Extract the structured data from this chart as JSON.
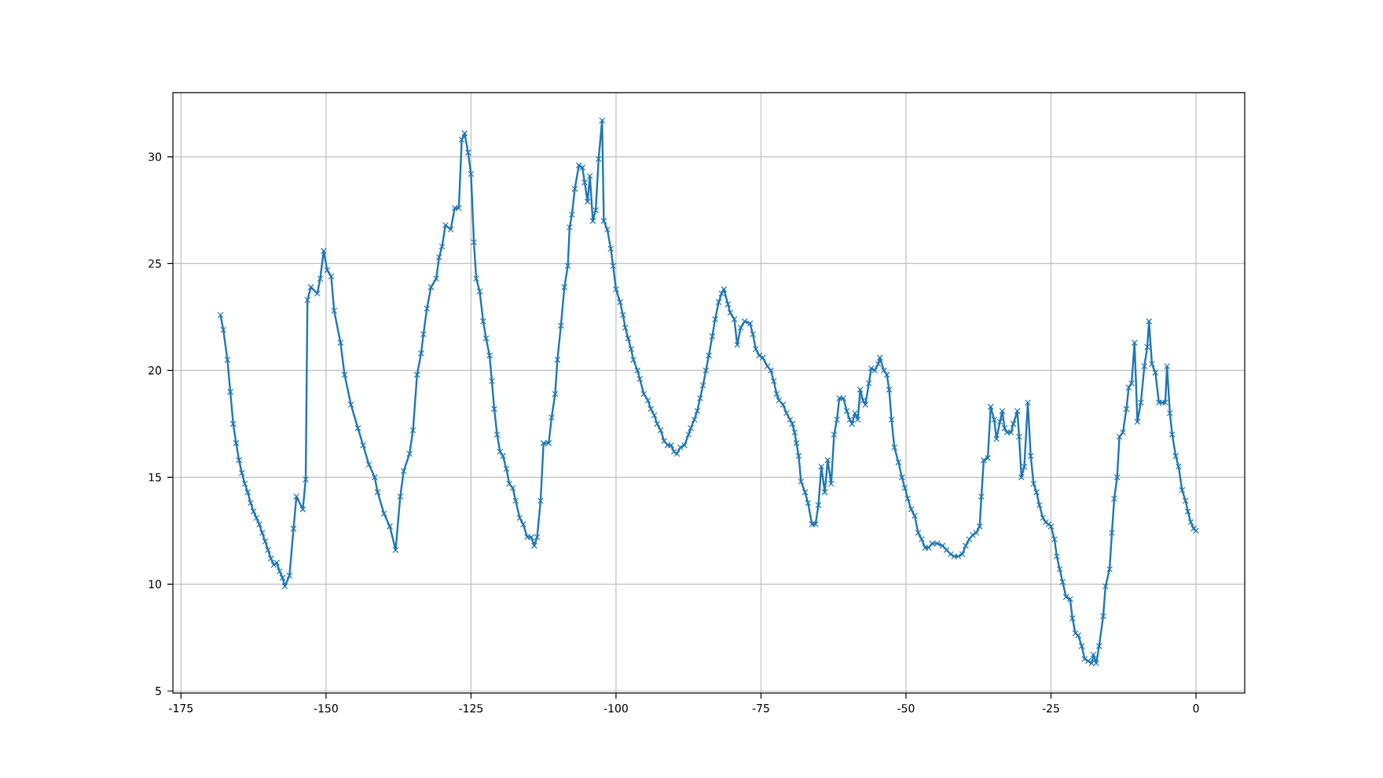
{
  "chart_data": {
    "type": "line",
    "color": "#1f77b4",
    "marker": "cross",
    "line_style": "solid",
    "grid": true,
    "xlim": [
      -176.4,
      8.4
    ],
    "ylim": [
      4.9,
      33.0
    ],
    "xticks": [
      -175,
      -150,
      -125,
      -100,
      -75,
      -50,
      -25,
      0
    ],
    "yticks": [
      5,
      10,
      15,
      20,
      25,
      30
    ],
    "x": [
      -168.2,
      -167.7,
      -167,
      -166.5,
      -166,
      -165.5,
      -165,
      -164.5,
      -164,
      -163.5,
      -163,
      -162.5,
      -162,
      -161.5,
      -161,
      -160.5,
      -160,
      -159.5,
      -159,
      -158.5,
      -158,
      -157.5,
      -157.1,
      -156.3,
      -155.6,
      -155.1,
      -154,
      -153.5,
      -153.2,
      -152.6,
      -151.5,
      -151,
      -150.4,
      -149.8,
      -149.1,
      -148.6,
      -147.5,
      -146.8,
      -145.7,
      -144.5,
      -143.6,
      -142.6,
      -141.6,
      -141.1,
      -140,
      -139,
      -138,
      -137.2,
      -136.6,
      -135.6,
      -135,
      -134.3,
      -133.6,
      -133.2,
      -132.6,
      -131.9,
      -131,
      -130.5,
      -130,
      -129.4,
      -128.5,
      -127.8,
      -127.1,
      -126.6,
      -126.1,
      -125.5,
      -125,
      -124.5,
      -124.1,
      -123.5,
      -122.9,
      -122.4,
      -121.8,
      -121.4,
      -121,
      -120.5,
      -120,
      -119.5,
      -118.9,
      -118.4,
      -117.8,
      -117.3,
      -116.6,
      -116,
      -115.3,
      -114.6,
      -114.1,
      -113.6,
      -113,
      -112.5,
      -111.6,
      -111.1,
      -110.5,
      -110.1,
      -109.5,
      -108.9,
      -108.3,
      -108,
      -107.6,
      -107.1,
      -106.4,
      -105.8,
      -105.4,
      -104.9,
      -104.5,
      -104,
      -103.5,
      -103,
      -102.4,
      -102.1,
      -101.5,
      -100.9,
      -100.5,
      -100,
      -99.3,
      -98.8,
      -98.4,
      -97.9,
      -97.4,
      -97,
      -96.3,
      -95.9,
      -95.2,
      -94.5,
      -94,
      -93.4,
      -92.9,
      -92.3,
      -91.7,
      -91.1,
      -90.5,
      -90,
      -89.5,
      -88.9,
      -88.2,
      -87.5,
      -87.1,
      -86.5,
      -86,
      -85.5,
      -85,
      -84.5,
      -84,
      -83.4,
      -82.9,
      -82.3,
      -81.8,
      -81.4,
      -80.7,
      -80.3,
      -79.6,
      -79.1,
      -78.5,
      -77.8,
      -76.9,
      -76.4,
      -75.9,
      -75.3,
      -74.7,
      -73.9,
      -73.3,
      -72.8,
      -72.3,
      -71.9,
      -71.2,
      -70.6,
      -70,
      -69.6,
      -69.2,
      -68.9,
      -68.5,
      -68.1,
      -67.4,
      -66.9,
      -66.2,
      -65.6,
      -65.1,
      -64.6,
      -64,
      -63.5,
      -62.9,
      -62.4,
      -61.9,
      -61.5,
      -60.8,
      -60.2,
      -59.7,
      -59.3,
      -58.8,
      -58.3,
      -57.9,
      -57.4,
      -57,
      -56.4,
      -56,
      -55.4,
      -54.8,
      -54.5,
      -53.8,
      -53.3,
      -52.9,
      -52.5,
      -52,
      -51.3,
      -50.7,
      -50.2,
      -49.7,
      -49.1,
      -48.5,
      -47.9,
      -47.3,
      -46.7,
      -46.1,
      -45.5,
      -44.6,
      -43.7,
      -43,
      -42.3,
      -41.7,
      -41,
      -40.3,
      -39.7,
      -39.1,
      -38.5,
      -37.9,
      -37.3,
      -37,
      -36.6,
      -35.9,
      -35.4,
      -34.8,
      -34.4,
      -33.8,
      -33.4,
      -33,
      -32.6,
      -31.9,
      -31.5,
      -30.8,
      -30.5,
      -30.1,
      -29.6,
      -29,
      -28.5,
      -28,
      -27.5,
      -27,
      -26.4,
      -25.9,
      -25.4,
      -25,
      -24.4,
      -24,
      -23.5,
      -23,
      -22.4,
      -21.7,
      -21.3,
      -20.8,
      -20.3,
      -19.7,
      -19.2,
      -18.6,
      -18,
      -17.7,
      -17.2,
      -16.7,
      -16,
      -15.6,
      -14.9,
      -14.5,
      -14.1,
      -13.6,
      -13.2,
      -12.6,
      -12,
      -11.6,
      -11.1,
      -10.6,
      -10.1,
      -9.5,
      -8.9,
      -8.4,
      -8.1,
      -7.6,
      -7,
      -6.4,
      -5.8,
      -5.3,
      -5,
      -4.5,
      -4.1,
      -3.5,
      -3,
      -2.4,
      -1.8,
      -1.4,
      -0.9,
      -0.4,
      0
    ],
    "values": [
      22.6,
      21.9,
      20.5,
      19,
      17.5,
      16.6,
      15.8,
      15.2,
      14.7,
      14.3,
      13.8,
      13.4,
      13.1,
      12.8,
      12.4,
      12,
      11.6,
      11.2,
      10.9,
      11,
      10.6,
      10.3,
      9.9,
      10.4,
      12.6,
      14.1,
      13.5,
      14.9,
      23.3,
      23.9,
      23.6,
      24.3,
      25.6,
      24.7,
      24.4,
      22.8,
      21.3,
      19.8,
      18.4,
      17.3,
      16.5,
      15.6,
      15,
      14.3,
      13.3,
      12.7,
      11.6,
      14.1,
      15.3,
      16.1,
      17.2,
      19.8,
      20.8,
      21.7,
      22.9,
      23.9,
      24.3,
      25.3,
      25.8,
      26.8,
      26.6,
      27.6,
      27.6,
      30.8,
      31.1,
      30.2,
      29.2,
      26,
      24.3,
      23.7,
      22.3,
      21.5,
      20.7,
      19.5,
      18.2,
      17,
      16.2,
      16,
      15.4,
      14.7,
      14.5,
      13.9,
      13.1,
      12.8,
      12.2,
      12.2,
      11.8,
      12.2,
      13.9,
      16.6,
      16.6,
      17.8,
      18.9,
      20.5,
      22.1,
      23.9,
      24.9,
      26.7,
      27.3,
      28.5,
      29.6,
      29.5,
      28.8,
      27.9,
      29.1,
      27,
      27.5,
      29.9,
      31.7,
      27,
      26.6,
      25.7,
      24.9,
      23.8,
      23.2,
      22.6,
      22,
      21.5,
      21,
      20.5,
      20,
      19.6,
      18.9,
      18.6,
      18.2,
      17.9,
      17.5,
      17.2,
      16.7,
      16.5,
      16.5,
      16.2,
      16.1,
      16.4,
      16.5,
      17,
      17.3,
      17.7,
      18.1,
      18.7,
      19.3,
      20,
      20.7,
      21.6,
      22.4,
      23.2,
      23.6,
      23.8,
      23.1,
      22.7,
      22.4,
      21.2,
      22,
      22.3,
      22.2,
      21.7,
      21,
      20.7,
      20.6,
      20.2,
      20,
      19.5,
      18.9,
      18.6,
      18.4,
      18,
      17.7,
      17.5,
      17.1,
      16.6,
      16,
      14.8,
      14.3,
      13.8,
      12.8,
      12.8,
      13.7,
      15.5,
      14.3,
      15.8,
      14.7,
      17,
      17.7,
      18.7,
      18.7,
      18.1,
      17.7,
      17.5,
      18,
      17.7,
      19.1,
      18.6,
      18.4,
      19.4,
      20.1,
      20,
      20.3,
      20.6,
      20,
      19.8,
      19.1,
      17.7,
      16.4,
      15.7,
      15,
      14.5,
      14,
      13.5,
      13.2,
      12.4,
      12.1,
      11.7,
      11.7,
      11.9,
      11.9,
      11.8,
      11.6,
      11.4,
      11.3,
      11.3,
      11.4,
      11.8,
      12.1,
      12.3,
      12.4,
      12.7,
      14.1,
      15.8,
      15.9,
      18.3,
      17.7,
      16.8,
      17.6,
      18.1,
      17.3,
      17.1,
      17.1,
      17.5,
      18.1,
      16.9,
      15,
      15.5,
      18.5,
      16,
      14.7,
      14.3,
      13.7,
      13.1,
      12.9,
      12.8,
      12.7,
      12.1,
      11.3,
      10.7,
      10.1,
      9.4,
      9.3,
      8.4,
      7.7,
      7.6,
      7.1,
      6.5,
      6.4,
      6.3,
      6.7,
      6.3,
      7.1,
      8.5,
      9.9,
      10.7,
      12.4,
      14,
      15,
      16.9,
      17.1,
      18.2,
      19.2,
      19.4,
      21.3,
      17.6,
      18.5,
      20.2,
      21.1,
      22.3,
      20.3,
      19.9,
      18.5,
      18.5,
      18.5,
      20.2,
      18,
      17,
      16,
      15.5,
      14.4,
      13.9,
      13.4,
      12.9,
      12.6,
      12.5
    ]
  }
}
